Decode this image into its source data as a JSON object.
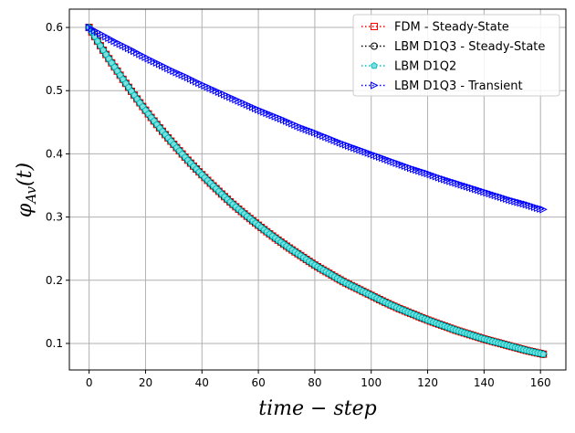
{
  "chart_data": {
    "type": "line",
    "title": "",
    "xlabel": "time − step",
    "ylabel": "φ_Av(t)",
    "ylabel_main": "φ",
    "ylabel_sub": "Av",
    "ylabel_arg": "(t)",
    "xlim": [
      -7,
      169
    ],
    "ylim": [
      0.058,
      0.629
    ],
    "xticks": [
      0,
      20,
      40,
      60,
      80,
      100,
      120,
      140,
      160
    ],
    "xtick_labels": [
      "0",
      "20",
      "40",
      "60",
      "80",
      "100",
      "120",
      "140",
      "160"
    ],
    "yticks": [
      0.1,
      0.2,
      0.3,
      0.4,
      0.5,
      0.6
    ],
    "ytick_labels": [
      "0.1",
      "0.2",
      "0.3",
      "0.4",
      "0.5",
      "0.6"
    ],
    "grid": true,
    "legend_position": "top-right",
    "x": [
      0,
      5,
      10,
      15,
      20,
      25,
      30,
      35,
      40,
      45,
      50,
      55,
      60,
      65,
      70,
      75,
      80,
      85,
      90,
      95,
      100,
      105,
      110,
      115,
      120,
      125,
      130,
      135,
      140,
      145,
      150,
      155,
      160,
      161
    ],
    "series": [
      {
        "name": "FDM - Steady-State",
        "color": "#ff0000",
        "marker": "square",
        "values": [
          0.6,
          0.564,
          0.531,
          0.499,
          0.469,
          0.441,
          0.415,
          0.39,
          0.367,
          0.345,
          0.324,
          0.305,
          0.287,
          0.27,
          0.254,
          0.239,
          0.224,
          0.211,
          0.198,
          0.187,
          0.176,
          0.165,
          0.155,
          0.146,
          0.137,
          0.129,
          0.121,
          0.114,
          0.107,
          0.101,
          0.095,
          0.089,
          0.084,
          0.083
        ]
      },
      {
        "name": "LBM D1Q3 - Steady-State",
        "color": "#000000",
        "marker": "circle",
        "values": [
          0.6,
          0.564,
          0.531,
          0.499,
          0.469,
          0.441,
          0.415,
          0.39,
          0.367,
          0.345,
          0.324,
          0.305,
          0.287,
          0.27,
          0.254,
          0.239,
          0.224,
          0.211,
          0.198,
          0.187,
          0.176,
          0.165,
          0.155,
          0.146,
          0.137,
          0.129,
          0.121,
          0.114,
          0.107,
          0.101,
          0.095,
          0.089,
          0.084,
          0.083
        ]
      },
      {
        "name": "LBM D1Q2",
        "color": "#00bfbf",
        "marker": "pentagon",
        "values": [
          0.6,
          0.564,
          0.531,
          0.499,
          0.469,
          0.441,
          0.415,
          0.39,
          0.367,
          0.345,
          0.324,
          0.305,
          0.287,
          0.27,
          0.254,
          0.239,
          0.224,
          0.211,
          0.198,
          0.187,
          0.176,
          0.165,
          0.155,
          0.146,
          0.137,
          0.129,
          0.121,
          0.114,
          0.107,
          0.101,
          0.095,
          0.089,
          0.084,
          0.083
        ]
      },
      {
        "name": "LBM D1Q3 - Transient",
        "color": "#0000ff",
        "marker": "triangle-right",
        "values": [
          0.6,
          0.588,
          0.576,
          0.565,
          0.553,
          0.542,
          0.531,
          0.521,
          0.51,
          0.5,
          0.49,
          0.48,
          0.47,
          0.461,
          0.452,
          0.442,
          0.434,
          0.425,
          0.416,
          0.408,
          0.4,
          0.392,
          0.384,
          0.376,
          0.369,
          0.361,
          0.354,
          0.347,
          0.34,
          0.333,
          0.326,
          0.32,
          0.313,
          0.312
        ]
      }
    ]
  }
}
